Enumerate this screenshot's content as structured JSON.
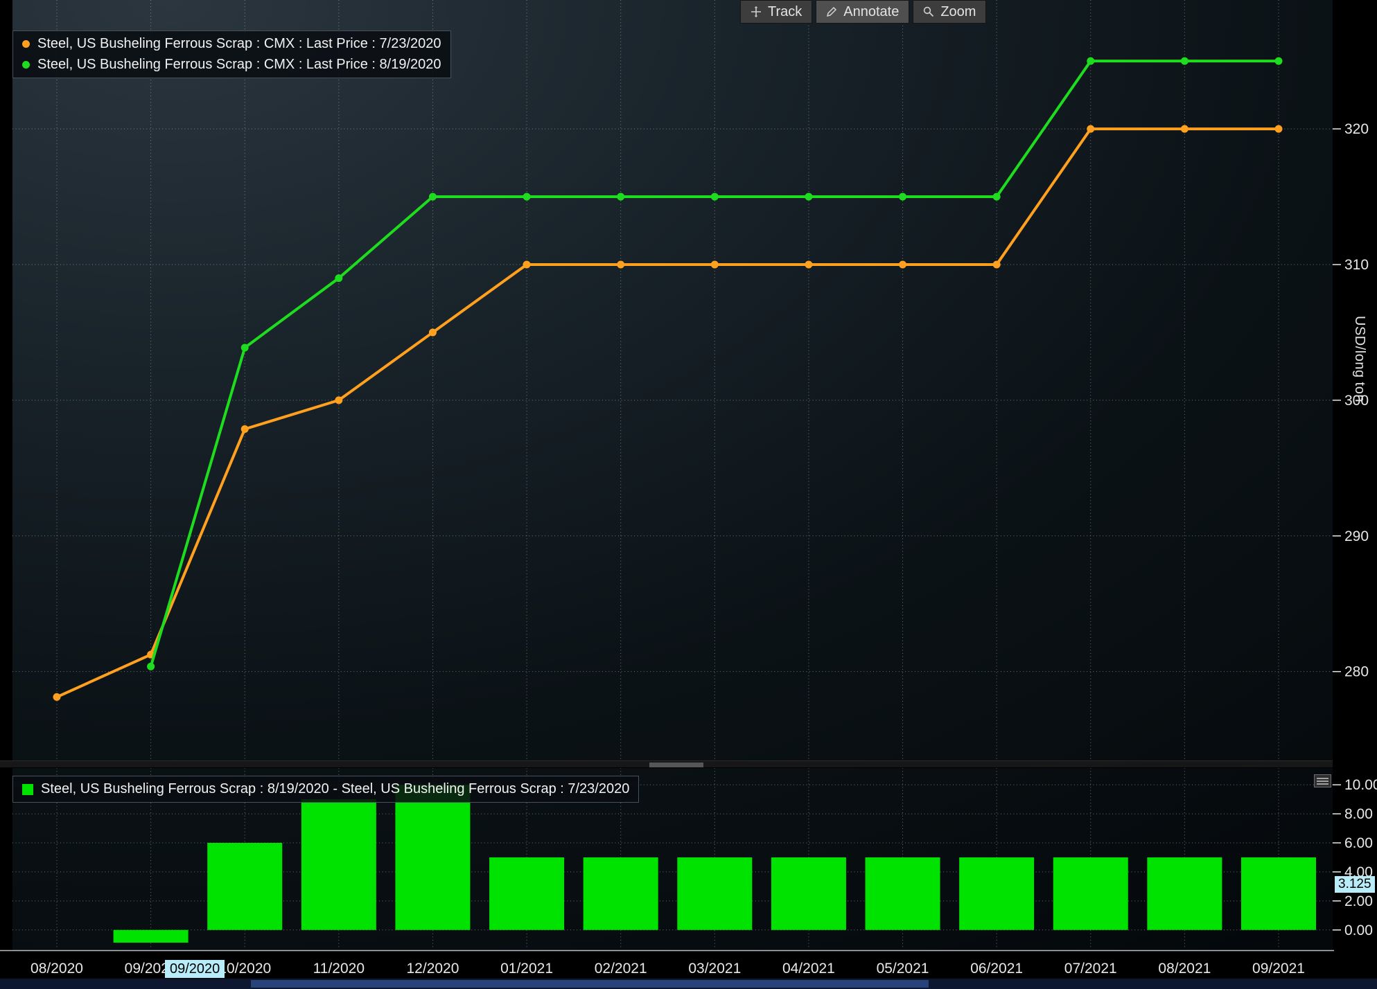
{
  "colors": {
    "orange_series": "#ffa01e",
    "green_series": "#1edc1e",
    "diff_bar": "#00e300",
    "grid": "#cdd6dd",
    "axis_text": "#e8e8e8",
    "cursor_highlight": "#b8ecf8"
  },
  "toolbar": {
    "buttons": [
      {
        "label": "Track"
      },
      {
        "label": "Annotate"
      },
      {
        "label": "Zoom"
      }
    ]
  },
  "main_legend": {
    "items": [
      {
        "color": "#ffa01e",
        "label": "Steel, US Busheling Ferrous Scrap : CMX : Last Price : 7/23/2020"
      },
      {
        "color": "#1edc1e",
        "label": "Steel, US Busheling Ferrous Scrap : CMX : Last Price : 8/19/2020"
      }
    ]
  },
  "diff_legend": {
    "items": [
      {
        "color": "#00e300",
        "label": "Steel, US Busheling Ferrous Scrap : 8/19/2020 - Steel, US Busheling Ferrous Scrap : 7/23/2020"
      }
    ]
  },
  "cursor": {
    "x_label": "09/2020",
    "y_label": "3.125"
  },
  "chart_data": [
    {
      "type": "line",
      "panel": "main",
      "ylabel": "USD/long ton",
      "x": [
        "08/2020",
        "09/2020",
        "10/2020",
        "11/2020",
        "12/2020",
        "01/2021",
        "02/2021",
        "03/2021",
        "04/2021",
        "05/2021",
        "06/2021",
        "07/2021",
        "08/2021",
        "09/2021"
      ],
      "series": [
        {
          "name": "Steel, US Busheling Ferrous Scrap : CMX : Last Price : 7/23/2020",
          "color": "#ffa01e",
          "values": [
            278.125,
            281.25,
            297.875,
            300.0,
            305.0,
            310.0,
            310.0,
            310.0,
            310.0,
            310.0,
            310.0,
            320.0,
            320.0,
            320.0
          ]
        },
        {
          "name": "Steel, US Busheling Ferrous Scrap : CMX : Last Price : 8/19/2020",
          "color": "#1edc1e",
          "values": [
            null,
            280.375,
            303.875,
            309.0,
            315.0,
            315.0,
            315.0,
            315.0,
            315.0,
            315.0,
            315.0,
            325.0,
            325.0,
            325.0
          ]
        }
      ],
      "ylim": [
        273.5,
        329.5
      ],
      "y_ticks": [
        280,
        290,
        300,
        310,
        320
      ],
      "grid": true,
      "legend_position": "top-left",
      "marker": "circle"
    },
    {
      "type": "bar",
      "panel": "lower",
      "x": [
        "08/2020",
        "09/2020",
        "10/2020",
        "11/2020",
        "12/2020",
        "01/2021",
        "02/2021",
        "03/2021",
        "04/2021",
        "05/2021",
        "06/2021",
        "07/2021",
        "08/2021",
        "09/2021"
      ],
      "series": [
        {
          "name": "Steel, US Busheling Ferrous Scrap : 8/19/2020 - Steel, US Busheling Ferrous Scrap : 7/23/2020",
          "color": "#00e300",
          "values": [
            null,
            -0.875,
            6.0,
            9.0,
            10.0,
            5.0,
            5.0,
            5.0,
            5.0,
            5.0,
            5.0,
            5.0,
            5.0,
            5.0
          ]
        }
      ],
      "ylim": [
        -1.3,
        11.2
      ],
      "y_ticks": [
        0,
        2,
        4,
        6,
        8,
        10
      ],
      "grid": true,
      "legend_position": "top-left"
    }
  ]
}
